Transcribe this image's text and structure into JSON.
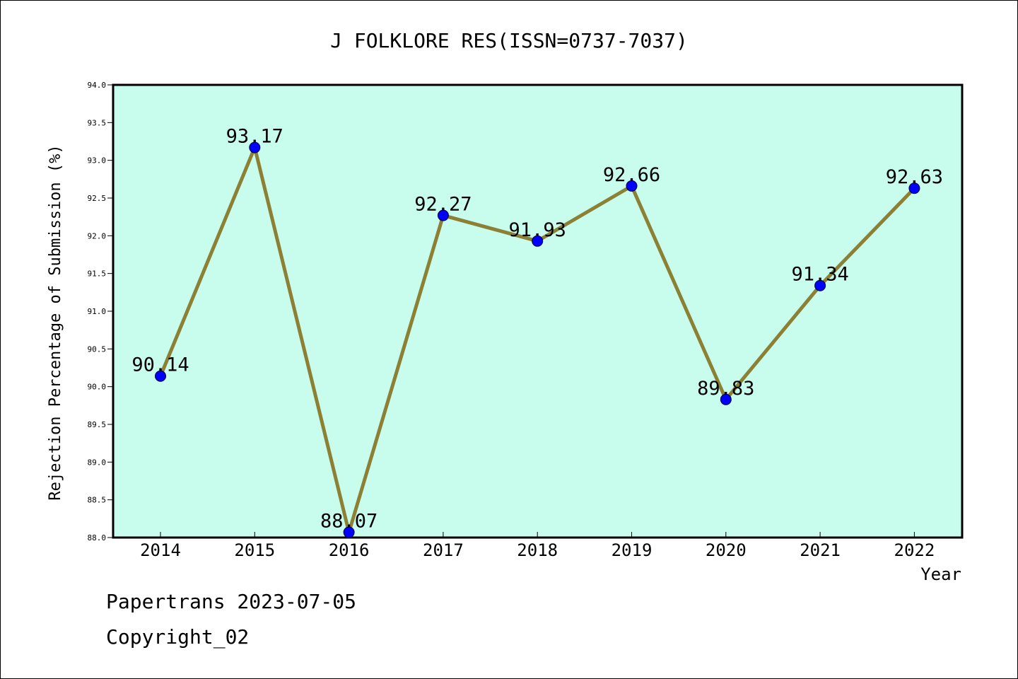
{
  "chart_data": {
    "type": "line",
    "title": "J FOLKLORE RES(ISSN=0737-7037)",
    "xlabel": "Year",
    "ylabel": "Rejection Percentage of Submission (%)",
    "categories": [
      "2014",
      "2015",
      "2016",
      "2017",
      "2018",
      "2019",
      "2020",
      "2021",
      "2022"
    ],
    "series": [
      {
        "values": [
          90.14,
          93.17,
          88.07,
          92.27,
          91.93,
          92.66,
          89.83,
          91.34,
          92.63
        ],
        "data_labels": [
          "90.14",
          "93.17",
          "88.07",
          "92.27",
          "91.93",
          "92.66",
          "89.83",
          "91.34",
          "92.63"
        ]
      }
    ],
    "ylim": [
      88.0,
      94.0
    ],
    "yticks": [
      "88.0",
      "88.5",
      "89.0",
      "89.5",
      "90.0",
      "90.5",
      "91.0",
      "91.5",
      "92.0",
      "92.5",
      "93.0",
      "93.5",
      "94.0"
    ],
    "grid": false,
    "legend": "none",
    "colors": {
      "plot_background": "#c8fcec",
      "line": "#8c8034",
      "marker": "#0000ff"
    }
  },
  "footer": {
    "line1": "Papertrans 2023-07-05",
    "line2": "Copyright_02"
  }
}
